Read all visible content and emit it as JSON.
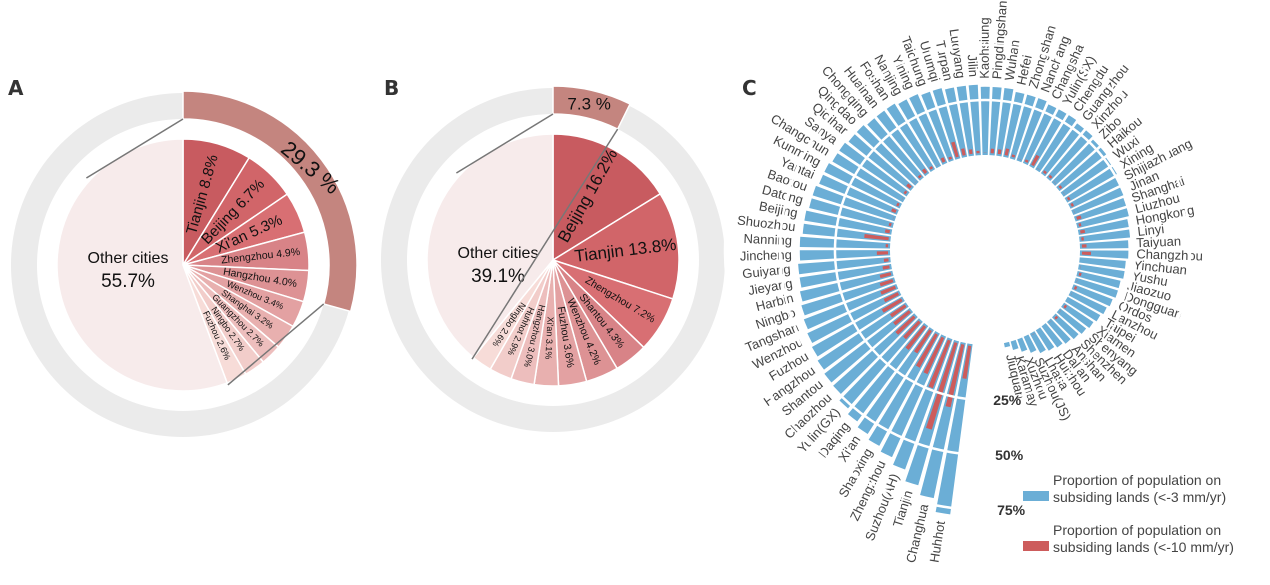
{
  "chart_data": [
    {
      "id": "A",
      "type": "pie",
      "panel_label": "A",
      "outer_ring": {
        "highlight_value": 29.3,
        "highlight_label": "29.3 %"
      },
      "slices": [
        {
          "label": "Tianjin",
          "value": 8.8,
          "text": "Tianjin 8.8%"
        },
        {
          "label": "Beijing",
          "value": 6.7,
          "text": "Beijing 6.7%"
        },
        {
          "label": "Xi'an",
          "value": 5.3,
          "text": "Xi'an 5.3%"
        },
        {
          "label": "Zhengzhou",
          "value": 4.9,
          "text": "Zhengzhou 4.9%"
        },
        {
          "label": "Hangzhou",
          "value": 4.0,
          "text": "Hangzhou 4.0%"
        },
        {
          "label": "Wenzhou",
          "value": 3.4,
          "text": "Wenzhou 3.4%"
        },
        {
          "label": "Shanghai",
          "value": 3.2,
          "text": "Shanghai 3.2%"
        },
        {
          "label": "Guangzhou",
          "value": 2.7,
          "text": "Guangzhou 2.7%"
        },
        {
          "label": "Ningbo",
          "value": 2.7,
          "text": "Ningbo 2.7%"
        },
        {
          "label": "Fuzhou",
          "value": 2.6,
          "text": "Fuzhou 2.6%"
        }
      ],
      "other": {
        "label": "Other cities",
        "value": 55.7,
        "value_text": "55.7%"
      }
    },
    {
      "id": "B",
      "type": "pie",
      "panel_label": "B",
      "outer_ring": {
        "highlight_value": 7.3,
        "highlight_label": "7.3 %"
      },
      "slices": [
        {
          "label": "Beijing",
          "value": 16.2,
          "text": "Beijing 16.2%"
        },
        {
          "label": "Tianjin",
          "value": 13.8,
          "text": "Tianjin 13.8%"
        },
        {
          "label": "Zhengzhou",
          "value": 7.2,
          "text": "Zhengzhou 7.2%"
        },
        {
          "label": "Shantou",
          "value": 4.3,
          "text": "Shantou 4.3%"
        },
        {
          "label": "Wenzhou",
          "value": 4.2,
          "text": "Wenzhou 4.2%"
        },
        {
          "label": "Fuzhou",
          "value": 3.6,
          "text": "Fuzhou 3.6%"
        },
        {
          "label": "Xi'an",
          "value": 3.1,
          "text": "Xi'an 3.1%"
        },
        {
          "label": "Hangzhou",
          "value": 3.0,
          "text": "Hangzhou 3.0%"
        },
        {
          "label": "Huhhot",
          "value": 2.9,
          "text": "Huhhot 2.9%"
        },
        {
          "label": "Ningbo",
          "value": 2.6,
          "text": "Ningbo 2.6%"
        }
      ],
      "other": {
        "label": "Other cities",
        "value": 39.1,
        "value_text": "39.1%"
      }
    },
    {
      "id": "C",
      "type": "bar",
      "subtype": "radial",
      "panel_label": "C",
      "ylim": [
        0,
        100
      ],
      "gridlines": [
        25,
        50,
        75
      ],
      "grid_labels": [
        "25%",
        "50%",
        "75%"
      ],
      "legend": [
        {
          "name": "Proportion of population on subsiding lands (<-3 mm/yr)",
          "lines": [
            "Proportion of population on",
            "subsiding lands (<-3 mm/yr)"
          ],
          "color": "#6baed6"
        },
        {
          "name": "Proportion of population on subsiding lands (<-10 mm/yr)",
          "lines": [
            "Proportion of population on",
            "subsiding lands (<-10 mm/yr)"
          ],
          "color": "#cd5c5c"
        }
      ],
      "legend_position": "bottom-right",
      "categories": [
        "Jiuquan",
        "Karamay",
        "Xuzhou",
        "Suzhou(JS)",
        "Lhasa",
        "Huizhou",
        "Dalian",
        "Anshan",
        "Shenzhen",
        "Shenyang",
        "Xiamen",
        "Taipei",
        "Lanzhou",
        "Ordos",
        "Dongguan",
        "Jiaozuo",
        "Yushu",
        "Yinchuan",
        "Changzhou",
        "Taiyuan",
        "Linyi",
        "Hongkong",
        "Liuzhou",
        "Shanghai",
        "Jinan",
        "Shijiazhuang",
        "Xining",
        "Wuxi",
        "Haikou",
        "Zibo",
        "Xinzhou",
        "Guangzhou",
        "Chengdu",
        "Yulin(SX)",
        "Changsha",
        "Nanchang",
        "Zhongshan",
        "Hefei",
        "Wuhan",
        "Pingdingshan",
        "Kaohsiung",
        "Jilin",
        "Luoyang",
        "Turpan",
        "Urumqi",
        "Taichung",
        "Yining",
        "Nanjing",
        "Foshan",
        "Huainan",
        "Chongqing",
        "Qingdao",
        "Qiqihar",
        "Sanya",
        "Changchun",
        "Kunming",
        "Yantai",
        "Baotou",
        "Datong",
        "Beijing",
        "Shuozhou",
        "Nanning",
        "Jincheng",
        "Guiyang",
        "Jieyang",
        "Harbin",
        "Ningbo",
        "Tangshan",
        "Wenzhou",
        "Fuzhou",
        "Hangzhou",
        "Shantou",
        "Chaozhou",
        "Yulin(GX)",
        "Daqing",
        "Xi'an",
        "Shaoxing",
        "Zhengzhou",
        "Suzhou(AH)",
        "Tianjin",
        "Changhua",
        "Huhhot"
      ],
      "series": [
        {
          "name": "Proportion of population on subsiding lands (<-3 mm/yr)",
          "values": [
            2,
            4,
            6,
            8,
            10,
            11,
            12,
            13,
            14,
            15,
            16,
            17,
            18,
            19,
            20,
            20,
            21,
            21,
            22,
            22,
            23,
            23,
            24,
            24,
            25,
            25,
            26,
            26,
            27,
            27,
            28,
            28,
            29,
            29,
            29,
            30,
            30,
            30,
            31,
            31,
            31,
            32,
            32,
            32,
            33,
            33,
            34,
            34,
            35,
            35,
            35,
            36,
            36,
            37,
            37,
            38,
            38,
            39,
            39,
            40,
            40,
            41,
            41,
            42,
            42,
            43,
            44,
            45,
            46,
            47,
            48,
            49,
            50,
            52,
            54,
            56,
            58,
            60,
            63,
            68,
            72,
            78
          ]
        },
        {
          "name": "Proportion of population on subsiding lands (<-10 mm/yr)",
          "values": [
            0,
            0,
            0,
            0,
            1,
            0,
            0,
            1,
            2,
            1,
            2,
            0,
            1,
            2,
            1,
            2,
            1,
            0,
            5,
            3,
            2,
            3,
            2,
            3,
            1,
            2,
            2,
            1,
            2,
            1,
            2,
            2,
            1,
            6,
            2,
            1,
            2,
            4,
            3,
            3,
            1,
            2,
            3,
            4,
            8,
            2,
            3,
            1,
            2,
            3,
            2,
            1,
            3,
            2,
            1,
            2,
            3,
            1,
            2,
            3,
            12,
            2,
            6,
            3,
            4,
            6,
            7,
            8,
            8,
            11,
            9,
            10,
            12,
            11,
            14,
            13,
            18,
            19,
            24,
            42,
            30,
            16
          ]
        }
      ]
    }
  ]
}
